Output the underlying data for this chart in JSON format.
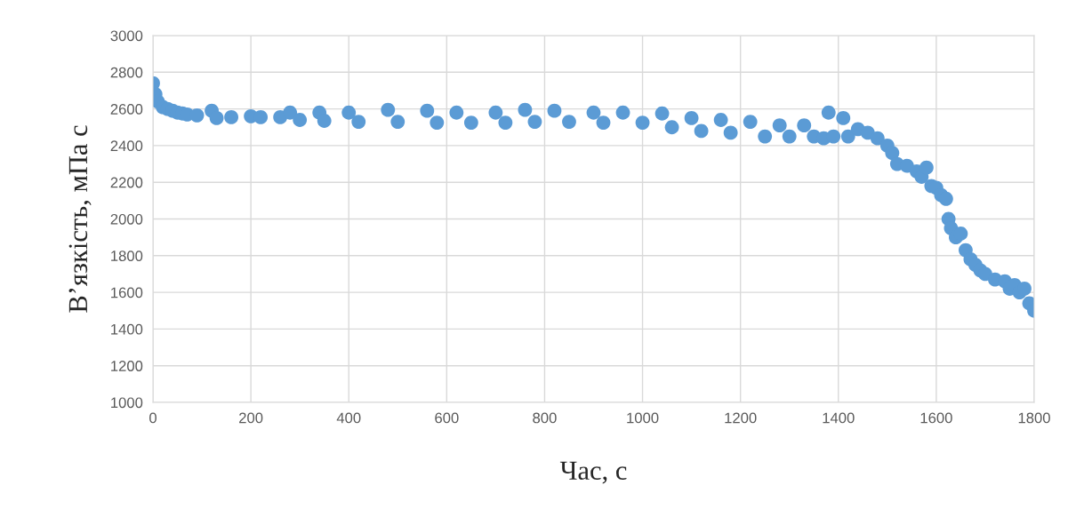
{
  "chart_data": {
    "type": "scatter",
    "xlabel": "Час, с",
    "ylabel": "В’язкість, мПа с",
    "x": [
      0,
      5,
      10,
      20,
      30,
      40,
      50,
      60,
      70,
      90,
      120,
      130,
      160,
      200,
      220,
      260,
      280,
      300,
      340,
      350,
      400,
      420,
      480,
      500,
      560,
      580,
      620,
      650,
      700,
      720,
      760,
      780,
      820,
      850,
      900,
      920,
      960,
      1000,
      1040,
      1060,
      1100,
      1120,
      1160,
      1180,
      1220,
      1250,
      1280,
      1300,
      1330,
      1350,
      1370,
      1380,
      1390,
      1410,
      1420,
      1440,
      1460,
      1480,
      1500,
      1510,
      1520,
      1540,
      1560,
      1570,
      1580,
      1590,
      1600,
      1610,
      1620,
      1625,
      1630,
      1640,
      1650,
      1660,
      1670,
      1680,
      1690,
      1700,
      1720,
      1740,
      1750,
      1760,
      1770,
      1780,
      1790,
      1800
    ],
    "series": [
      {
        "color": "#5b9bd5",
        "values": [
          2740,
          2680,
          2640,
          2610,
          2600,
          2590,
          2580,
          2575,
          2570,
          2565,
          2590,
          2550,
          2555,
          2560,
          2555,
          2555,
          2580,
          2540,
          2580,
          2535,
          2580,
          2530,
          2595,
          2530,
          2590,
          2525,
          2580,
          2525,
          2580,
          2525,
          2595,
          2530,
          2590,
          2530,
          2580,
          2525,
          2580,
          2525,
          2575,
          2500,
          2550,
          2480,
          2540,
          2470,
          2530,
          2450,
          2510,
          2450,
          2510,
          2450,
          2440,
          2580,
          2450,
          2550,
          2450,
          2490,
          2470,
          2440,
          2400,
          2360,
          2300,
          2290,
          2260,
          2230,
          2280,
          2180,
          2170,
          2130,
          2110,
          2000,
          1950,
          1900,
          1920,
          1830,
          1780,
          1750,
          1720,
          1700,
          1670,
          1660,
          1620,
          1640,
          1600,
          1620,
          1540,
          1500
        ]
      }
    ],
    "xlim": [
      0,
      1800
    ],
    "xticks": [
      0,
      200,
      400,
      600,
      800,
      1000,
      1200,
      1400,
      1600,
      1800
    ],
    "ylim": [
      1000,
      3000
    ],
    "yticks": [
      1000,
      1200,
      1400,
      1600,
      1800,
      2000,
      2200,
      2400,
      2600,
      2800,
      3000
    ],
    "grid": true,
    "marker": "circle"
  }
}
